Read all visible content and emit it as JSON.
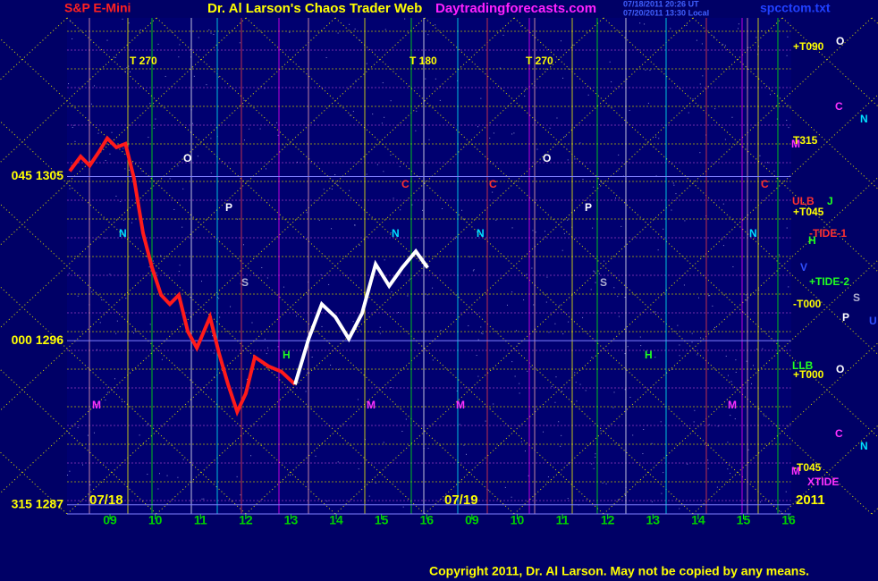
{
  "chart_data": {
    "type": "line",
    "symbol": "S&P E-Mini",
    "title": "Dr. Al Larson's Chaos Trader Web",
    "site": "Daytradingforecasts.com",
    "file": "spcctom.txt",
    "timestamps": [
      "07/18/2011 20:26 UT",
      "07/20/2011 13:30 Local"
    ],
    "copyright": "Copyright 2011, Dr. Al Larson. May not be copied by any means.",
    "xlim": [
      0.05,
      16.05
    ],
    "xticks": [
      {
        "value": 1,
        "label": "09"
      },
      {
        "value": 2,
        "label": "10"
      },
      {
        "value": 3,
        "label": "11"
      },
      {
        "value": 4,
        "label": "12"
      },
      {
        "value": 5,
        "label": "13"
      },
      {
        "value": 6,
        "label": "14"
      },
      {
        "value": 7,
        "label": "15"
      },
      {
        "value": 8,
        "label": "16"
      },
      {
        "value": 9,
        "label": "09"
      },
      {
        "value": 10,
        "label": "10"
      },
      {
        "value": 11,
        "label": "11"
      },
      {
        "value": 12,
        "label": "12"
      },
      {
        "value": 13,
        "label": "13"
      },
      {
        "value": 14,
        "label": "14"
      },
      {
        "value": 15,
        "label": "15"
      },
      {
        "value": 16,
        "label": "16"
      }
    ],
    "ylim": [
      1286.5,
      1313.7
    ],
    "yticks": [
      {
        "value": 1287,
        "label": "315  1287"
      },
      {
        "value": 1296,
        "label": "000  1296"
      },
      {
        "value": 1305,
        "label": "045  1305"
      }
    ],
    "series": [
      {
        "color": "#ff1a1a",
        "x": [
          0.11,
          0.35,
          0.55,
          0.74,
          0.94,
          1.14,
          1.34,
          1.53,
          1.73,
          1.93,
          2.13,
          2.32,
          2.52,
          2.72,
          2.92,
          3.21,
          3.41,
          3.61,
          3.81,
          4.0,
          4.2,
          4.5,
          4.79,
          5.09
        ],
        "values": [
          1305.3,
          1306.1,
          1305.6,
          1306.3,
          1307.1,
          1306.6,
          1306.8,
          1304.9,
          1301.9,
          1300.0,
          1298.5,
          1298.0,
          1298.5,
          1296.5,
          1295.6,
          1297.3,
          1295.3,
          1293.6,
          1292.1,
          1293.1,
          1295.1,
          1294.6,
          1294.3,
          1293.6
        ]
      },
      {
        "color": "#ffffff",
        "x": [
          5.09,
          5.39,
          5.68,
          5.98,
          6.28,
          6.57,
          6.87,
          7.17,
          7.46,
          7.76,
          8.02
        ],
        "values": [
          1293.6,
          1296.1,
          1298.0,
          1297.3,
          1296.1,
          1297.5,
          1300.2,
          1299.0,
          1300.0,
          1300.9,
          1300.0
        ]
      }
    ],
    "annotations": [
      "T  270",
      "T  180",
      "T  270",
      "O",
      "O",
      "P",
      "P",
      "N",
      "N",
      "N",
      "N",
      "C",
      "C",
      "C",
      "S",
      "S",
      "M",
      "M",
      "M",
      "M",
      "H",
      "H",
      "+T090",
      "O",
      "C",
      "N",
      "M",
      "T315",
      "ULB",
      "J",
      "+T045",
      "-TIDE-1",
      "H",
      "V",
      "+TIDE-2",
      "S",
      "-T000",
      "P",
      "U",
      "LLB",
      "O",
      "+T000",
      "C",
      "N",
      "-T045",
      "M",
      "XTIDE",
      "07/18",
      "07/19",
      "2011"
    ]
  }
}
